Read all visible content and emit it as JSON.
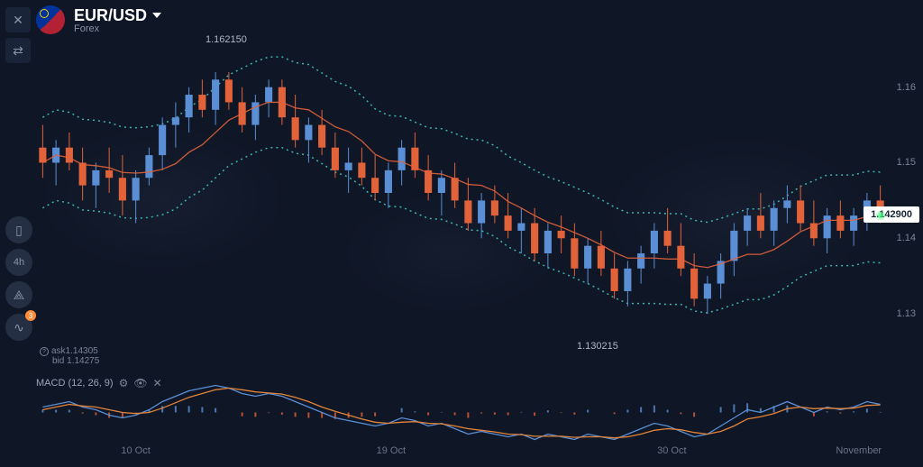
{
  "header": {
    "pair": "EUR/USD",
    "category": "Forex"
  },
  "price_tag": "1.142900",
  "hi_label": "1.162150",
  "lo_label": "1.130215",
  "ask_label": "ask",
  "ask_value": "1.14305",
  "bid_label": "bid",
  "bid_value": "1.14275",
  "macd_label": "MACD (12, 26, 9)",
  "timeframe": "4h",
  "indicator_badge": "3",
  "y_axis": {
    "min": 1.125,
    "max": 1.167,
    "ticks": [
      1.13,
      1.14,
      1.15,
      1.16
    ]
  },
  "x_axis": {
    "ticks": [
      {
        "label": "10 Oct",
        "pos": 0.1
      },
      {
        "label": "19 Oct",
        "pos": 0.4
      },
      {
        "label": "30 Oct",
        "pos": 0.73
      },
      {
        "label": "November",
        "pos": 0.94
      }
    ]
  },
  "colors": {
    "bg": "#0f1626",
    "up": "#5a8fd6",
    "down": "#e2623a",
    "sma": "#e2623a",
    "bb": "#3ab5b0",
    "grid": "#1a2438",
    "macd_line": "#5a8fd6",
    "signal_line": "#e2843a",
    "hist_pos": "#5a8fd6",
    "hist_neg": "#e2623a",
    "text": "#8a94a8"
  },
  "candles": [
    {
      "o": 1.152,
      "h": 1.155,
      "l": 1.148,
      "c": 1.15
    },
    {
      "o": 1.15,
      "h": 1.153,
      "l": 1.147,
      "c": 1.152
    },
    {
      "o": 1.152,
      "h": 1.154,
      "l": 1.149,
      "c": 1.15
    },
    {
      "o": 1.15,
      "h": 1.152,
      "l": 1.145,
      "c": 1.147
    },
    {
      "o": 1.147,
      "h": 1.15,
      "l": 1.144,
      "c": 1.149
    },
    {
      "o": 1.149,
      "h": 1.152,
      "l": 1.146,
      "c": 1.148
    },
    {
      "o": 1.148,
      "h": 1.151,
      "l": 1.143,
      "c": 1.145
    },
    {
      "o": 1.145,
      "h": 1.149,
      "l": 1.142,
      "c": 1.148
    },
    {
      "o": 1.148,
      "h": 1.152,
      "l": 1.147,
      "c": 1.151
    },
    {
      "o": 1.151,
      "h": 1.156,
      "l": 1.149,
      "c": 1.155
    },
    {
      "o": 1.155,
      "h": 1.158,
      "l": 1.152,
      "c": 1.156
    },
    {
      "o": 1.156,
      "h": 1.16,
      "l": 1.154,
      "c": 1.159
    },
    {
      "o": 1.159,
      "h": 1.161,
      "l": 1.156,
      "c": 1.157
    },
    {
      "o": 1.157,
      "h": 1.162,
      "l": 1.155,
      "c": 1.161
    },
    {
      "o": 1.161,
      "h": 1.162,
      "l": 1.157,
      "c": 1.158
    },
    {
      "o": 1.158,
      "h": 1.16,
      "l": 1.154,
      "c": 1.155
    },
    {
      "o": 1.155,
      "h": 1.159,
      "l": 1.153,
      "c": 1.158
    },
    {
      "o": 1.158,
      "h": 1.161,
      "l": 1.156,
      "c": 1.16
    },
    {
      "o": 1.16,
      "h": 1.161,
      "l": 1.155,
      "c": 1.156
    },
    {
      "o": 1.156,
      "h": 1.159,
      "l": 1.152,
      "c": 1.153
    },
    {
      "o": 1.153,
      "h": 1.156,
      "l": 1.15,
      "c": 1.155
    },
    {
      "o": 1.155,
      "h": 1.157,
      "l": 1.151,
      "c": 1.152
    },
    {
      "o": 1.152,
      "h": 1.154,
      "l": 1.148,
      "c": 1.149
    },
    {
      "o": 1.149,
      "h": 1.152,
      "l": 1.146,
      "c": 1.15
    },
    {
      "o": 1.15,
      "h": 1.152,
      "l": 1.147,
      "c": 1.148
    },
    {
      "o": 1.148,
      "h": 1.151,
      "l": 1.145,
      "c": 1.146
    },
    {
      "o": 1.146,
      "h": 1.15,
      "l": 1.144,
      "c": 1.149
    },
    {
      "o": 1.149,
      "h": 1.153,
      "l": 1.147,
      "c": 1.152
    },
    {
      "o": 1.152,
      "h": 1.154,
      "l": 1.148,
      "c": 1.149
    },
    {
      "o": 1.149,
      "h": 1.151,
      "l": 1.145,
      "c": 1.146
    },
    {
      "o": 1.146,
      "h": 1.149,
      "l": 1.143,
      "c": 1.148
    },
    {
      "o": 1.148,
      "h": 1.15,
      "l": 1.144,
      "c": 1.145
    },
    {
      "o": 1.145,
      "h": 1.148,
      "l": 1.141,
      "c": 1.142
    },
    {
      "o": 1.142,
      "h": 1.146,
      "l": 1.14,
      "c": 1.145
    },
    {
      "o": 1.145,
      "h": 1.147,
      "l": 1.142,
      "c": 1.143
    },
    {
      "o": 1.143,
      "h": 1.146,
      "l": 1.14,
      "c": 1.141
    },
    {
      "o": 1.141,
      "h": 1.144,
      "l": 1.138,
      "c": 1.142
    },
    {
      "o": 1.142,
      "h": 1.144,
      "l": 1.137,
      "c": 1.138
    },
    {
      "o": 1.138,
      "h": 1.142,
      "l": 1.136,
      "c": 1.141
    },
    {
      "o": 1.141,
      "h": 1.143,
      "l": 1.138,
      "c": 1.14
    },
    {
      "o": 1.14,
      "h": 1.142,
      "l": 1.135,
      "c": 1.136
    },
    {
      "o": 1.136,
      "h": 1.14,
      "l": 1.134,
      "c": 1.139
    },
    {
      "o": 1.139,
      "h": 1.141,
      "l": 1.135,
      "c": 1.136
    },
    {
      "o": 1.136,
      "h": 1.138,
      "l": 1.132,
      "c": 1.133
    },
    {
      "o": 1.133,
      "h": 1.137,
      "l": 1.131,
      "c": 1.136
    },
    {
      "o": 1.136,
      "h": 1.139,
      "l": 1.134,
      "c": 1.138
    },
    {
      "o": 1.138,
      "h": 1.142,
      "l": 1.136,
      "c": 1.141
    },
    {
      "o": 1.141,
      "h": 1.144,
      "l": 1.138,
      "c": 1.139
    },
    {
      "o": 1.139,
      "h": 1.142,
      "l": 1.135,
      "c": 1.136
    },
    {
      "o": 1.136,
      "h": 1.138,
      "l": 1.131,
      "c": 1.132
    },
    {
      "o": 1.132,
      "h": 1.135,
      "l": 1.13,
      "c": 1.134
    },
    {
      "o": 1.134,
      "h": 1.138,
      "l": 1.132,
      "c": 1.137
    },
    {
      "o": 1.137,
      "h": 1.142,
      "l": 1.135,
      "c": 1.141
    },
    {
      "o": 1.141,
      "h": 1.144,
      "l": 1.139,
      "c": 1.143
    },
    {
      "o": 1.143,
      "h": 1.146,
      "l": 1.14,
      "c": 1.141
    },
    {
      "o": 1.141,
      "h": 1.145,
      "l": 1.139,
      "c": 1.144
    },
    {
      "o": 1.144,
      "h": 1.147,
      "l": 1.142,
      "c": 1.145
    },
    {
      "o": 1.145,
      "h": 1.147,
      "l": 1.141,
      "c": 1.142
    },
    {
      "o": 1.142,
      "h": 1.145,
      "l": 1.139,
      "c": 1.14
    },
    {
      "o": 1.14,
      "h": 1.144,
      "l": 1.138,
      "c": 1.143
    },
    {
      "o": 1.143,
      "h": 1.145,
      "l": 1.14,
      "c": 1.141
    },
    {
      "o": 1.141,
      "h": 1.144,
      "l": 1.139,
      "c": 1.143
    },
    {
      "o": 1.143,
      "h": 1.146,
      "l": 1.141,
      "c": 1.145
    },
    {
      "o": 1.145,
      "h": 1.147,
      "l": 1.142,
      "c": 1.143
    }
  ],
  "macd": {
    "bars": 64,
    "main": [
      0.1,
      0.15,
      0.2,
      0.1,
      0.05,
      -0.05,
      -0.1,
      -0.05,
      0.05,
      0.2,
      0.3,
      0.4,
      0.45,
      0.5,
      0.45,
      0.35,
      0.3,
      0.35,
      0.3,
      0.2,
      0.1,
      0.0,
      -0.1,
      -0.15,
      -0.2,
      -0.25,
      -0.2,
      -0.1,
      -0.15,
      -0.25,
      -0.2,
      -0.3,
      -0.4,
      -0.35,
      -0.4,
      -0.45,
      -0.4,
      -0.5,
      -0.4,
      -0.45,
      -0.5,
      -0.4,
      -0.45,
      -0.5,
      -0.4,
      -0.3,
      -0.2,
      -0.25,
      -0.35,
      -0.45,
      -0.4,
      -0.25,
      -0.1,
      0.05,
      0.0,
      0.1,
      0.2,
      0.1,
      0.0,
      0.1,
      0.05,
      0.1,
      0.2,
      0.15
    ],
    "signal": [
      0.05,
      0.1,
      0.15,
      0.12,
      0.1,
      0.05,
      0.0,
      -0.02,
      0.0,
      0.08,
      0.18,
      0.28,
      0.35,
      0.42,
      0.45,
      0.42,
      0.38,
      0.36,
      0.34,
      0.28,
      0.2,
      0.1,
      0.02,
      -0.05,
      -0.12,
      -0.18,
      -0.2,
      -0.18,
      -0.17,
      -0.2,
      -0.21,
      -0.25,
      -0.3,
      -0.33,
      -0.36,
      -0.4,
      -0.41,
      -0.44,
      -0.44,
      -0.44,
      -0.46,
      -0.45,
      -0.45,
      -0.47,
      -0.45,
      -0.4,
      -0.33,
      -0.3,
      -0.32,
      -0.37,
      -0.4,
      -0.35,
      -0.25,
      -0.12,
      -0.08,
      -0.02,
      0.07,
      0.1,
      0.07,
      0.08,
      0.07,
      0.08,
      0.13,
      0.14
    ]
  }
}
